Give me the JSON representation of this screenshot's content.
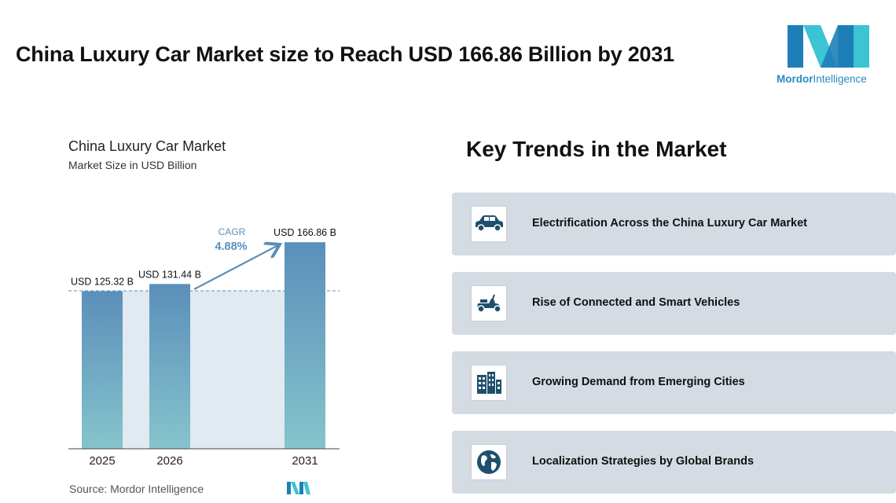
{
  "header": {
    "title": "China Luxury Car Market size to Reach USD 166.86 Billion by 2031"
  },
  "logo": {
    "brand_part1": "Mordor",
    "brand_part2": "Intelligence",
    "colors": {
      "dark": "#1e7fb8",
      "light": "#3cc4d4"
    }
  },
  "chart_data": {
    "type": "bar",
    "title": "China Luxury Car Market",
    "subtitle": "Market Size in USD Billion",
    "categories": [
      "2025",
      "2026",
      "2031"
    ],
    "values": [
      125.32,
      131.44,
      166.86
    ],
    "data_labels": [
      "USD 125.32 B",
      "USD 131.44 B",
      "USD 166.86 B"
    ],
    "cagr_label": "CAGR",
    "cagr_value": "4.88%",
    "bar_color_top": "#5b8fba",
    "bar_color_bottom": "#86c4cc",
    "grid": false
  },
  "source": {
    "text": "Source: Mordor Intelligence"
  },
  "trends": {
    "title": "Key Trends in the Market",
    "items": [
      {
        "label": "Electrification Across the China Luxury Car Market",
        "icon": "car-icon"
      },
      {
        "label": "Rise of Connected and Smart Vehicles",
        "icon": "scooter-icon"
      },
      {
        "label": "Growing Demand from Emerging Cities",
        "icon": "buildings-icon"
      },
      {
        "label": "Localization Strategies by Global Brands",
        "icon": "globe-icon"
      }
    ]
  }
}
